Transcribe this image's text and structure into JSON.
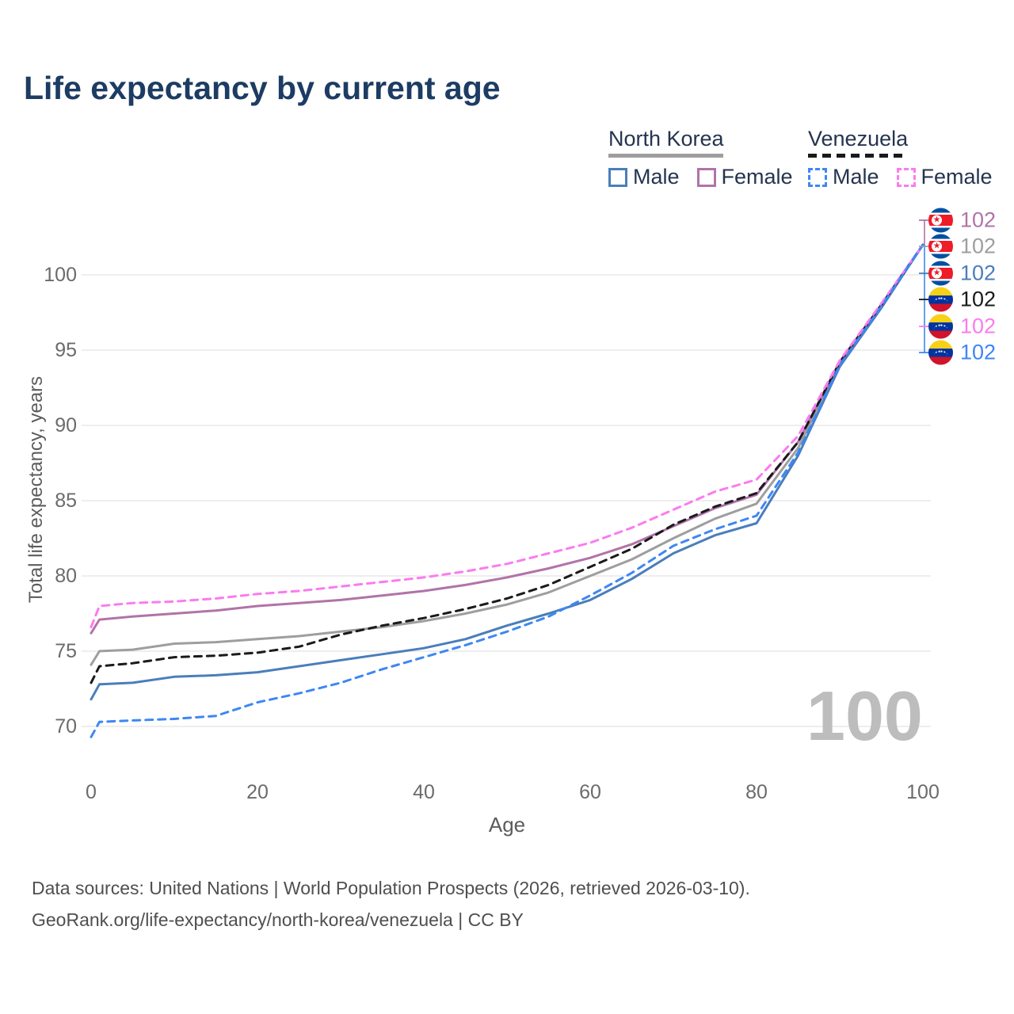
{
  "title": "Life expectancy by current age",
  "watermark": "100",
  "legend": {
    "groups": [
      {
        "name": "North Korea",
        "line_style": "solid",
        "line_color": "#9e9e9e",
        "items": [
          {
            "label": "Male",
            "color": "#4a7ebb",
            "style": "solid"
          },
          {
            "label": "Female",
            "color": "#b173a9",
            "style": "solid"
          }
        ]
      },
      {
        "name": "Venezuela",
        "line_style": "dashed",
        "line_color": "#1a1a1a",
        "items": [
          {
            "label": "Male",
            "color": "#3d87f5",
            "style": "dashed"
          },
          {
            "label": "Female",
            "color": "#fb7bef",
            "style": "dashed"
          }
        ]
      }
    ]
  },
  "end_labels": [
    {
      "country": "north-korea",
      "value": "102",
      "color": "#b173a9"
    },
    {
      "country": "north-korea",
      "value": "102",
      "color": "#9e9e9e"
    },
    {
      "country": "north-korea",
      "value": "102",
      "color": "#4a7ebb"
    },
    {
      "country": "venezuela",
      "value": "102",
      "color": "#1a1a1a"
    },
    {
      "country": "venezuela",
      "value": "102",
      "color": "#fb7bef"
    },
    {
      "country": "venezuela",
      "value": "102",
      "color": "#3d87f5"
    }
  ],
  "footer": {
    "line1": "Data sources: United Nations | World Population Prospects (2026, retrieved 2026-03-10).",
    "line2": "GeoRank.org/life-expectancy/north-korea/venezuela | CC BY"
  },
  "chart_data": {
    "type": "line",
    "title": "Life expectancy by current age",
    "xlabel": "Age",
    "ylabel": "Total life expectancy, years",
    "xlim": [
      0,
      100
    ],
    "ylim": [
      69,
      103
    ],
    "x_ticks": [
      0,
      20,
      40,
      60,
      80,
      100
    ],
    "y_ticks": [
      100,
      95,
      90,
      85,
      80,
      75,
      70
    ],
    "grid": "horizontal",
    "legend_position": "top-right",
    "ages": [
      0,
      1,
      5,
      10,
      15,
      20,
      25,
      30,
      35,
      40,
      45,
      50,
      55,
      60,
      65,
      70,
      75,
      80,
      85,
      90,
      95,
      100
    ],
    "series": [
      {
        "name": "North Korea Total",
        "country": "North Korea",
        "sex": "Total",
        "color": "#9e9e9e",
        "dash": "solid",
        "values": [
          74.1,
          75.0,
          75.1,
          75.5,
          75.6,
          75.8,
          76.0,
          76.3,
          76.6,
          77.0,
          77.5,
          78.1,
          78.9,
          80.0,
          81.1,
          82.5,
          83.8,
          84.8,
          88.5,
          94.1,
          97.9,
          102
        ]
      },
      {
        "name": "North Korea Female",
        "country": "North Korea",
        "sex": "Female",
        "color": "#b173a9",
        "dash": "solid",
        "values": [
          76.2,
          77.1,
          77.3,
          77.5,
          77.7,
          78.0,
          78.2,
          78.4,
          78.7,
          79.0,
          79.4,
          79.9,
          80.5,
          81.2,
          82.1,
          83.3,
          84.5,
          85.4,
          88.9,
          94.2,
          98.0,
          102
        ]
      },
      {
        "name": "North Korea Male",
        "country": "North Korea",
        "sex": "Male",
        "color": "#4a7ebb",
        "dash": "solid",
        "values": [
          71.8,
          72.8,
          72.9,
          73.3,
          73.4,
          73.6,
          74.0,
          74.4,
          74.8,
          75.2,
          75.8,
          76.7,
          77.5,
          78.4,
          79.8,
          81.5,
          82.7,
          83.5,
          88.0,
          93.9,
          97.8,
          102
        ]
      },
      {
        "name": "Venezuela Total",
        "country": "Venezuela",
        "sex": "Total",
        "color": "#1a1a1a",
        "dash": "dashed",
        "values": [
          72.9,
          74.0,
          74.2,
          74.6,
          74.7,
          74.9,
          75.3,
          76.1,
          76.7,
          77.2,
          77.8,
          78.5,
          79.4,
          80.6,
          81.8,
          83.4,
          84.6,
          85.5,
          88.9,
          94.2,
          98.0,
          102
        ]
      },
      {
        "name": "Venezuela Female",
        "country": "Venezuela",
        "sex": "Female",
        "color": "#fb7bef",
        "dash": "dashed",
        "values": [
          76.6,
          78.0,
          78.2,
          78.3,
          78.5,
          78.8,
          79.0,
          79.3,
          79.6,
          79.9,
          80.3,
          80.8,
          81.5,
          82.2,
          83.2,
          84.4,
          85.6,
          86.4,
          89.3,
          94.3,
          98.1,
          102
        ]
      },
      {
        "name": "Venezuela Male",
        "country": "Venezuela",
        "sex": "Male",
        "color": "#3d87f5",
        "dash": "dashed",
        "values": [
          69.3,
          70.3,
          70.4,
          70.5,
          70.7,
          71.6,
          72.2,
          72.9,
          73.8,
          74.6,
          75.4,
          76.3,
          77.3,
          78.7,
          80.2,
          82.0,
          83.1,
          84.0,
          88.2,
          94.0,
          97.9,
          102
        ]
      }
    ]
  }
}
